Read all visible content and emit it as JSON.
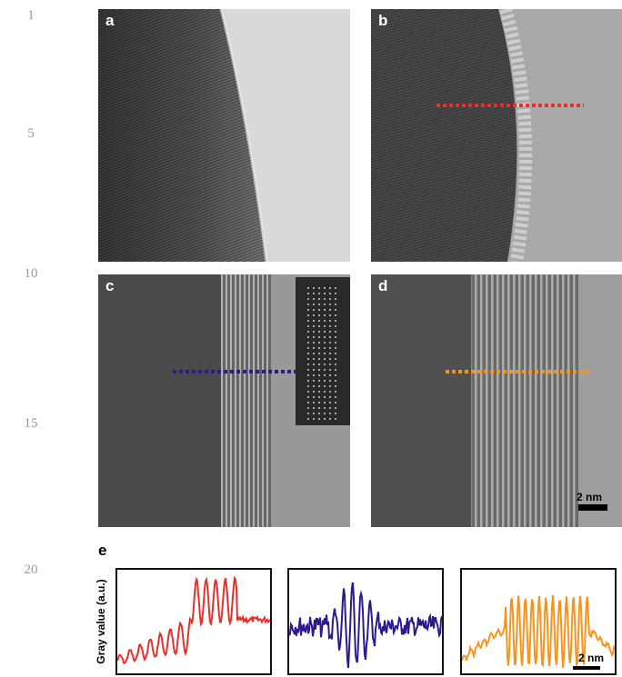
{
  "line_numbers": [
    "1",
    "5",
    "10",
    "15",
    "20"
  ],
  "panels": [
    {
      "label": "a"
    },
    {
      "label": "b"
    },
    {
      "label": "c"
    },
    {
      "label": "d",
      "scale_bar": "2 nm"
    }
  ],
  "panel_e": {
    "label": "e",
    "y_label": "Gray value (a.u.)",
    "scale_bar": "2 nm"
  }
}
